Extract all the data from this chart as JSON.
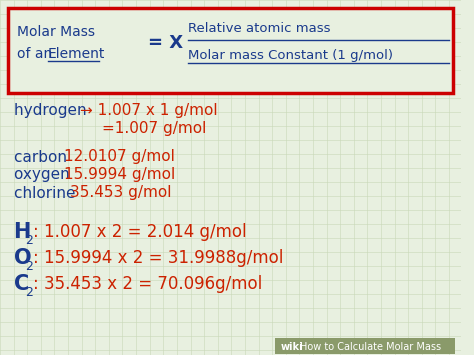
{
  "bg_color": "#e8f0e0",
  "grid_color": "#c8d8b8",
  "red_box_color": "#cc0000",
  "blue_color": "#1a3a8c",
  "red_text_color": "#cc2200",
  "watermark_bg": "#8a9a6a",
  "formula_line1_left": "Molar Mass",
  "formula_line2_left_1": "of an ",
  "formula_line2_left_2": "Element",
  "formula_middle": "= X",
  "formula_line1_right": "Relative atomic mass",
  "formula_line2_right": "Molar mass Constant (1 g/mol)"
}
